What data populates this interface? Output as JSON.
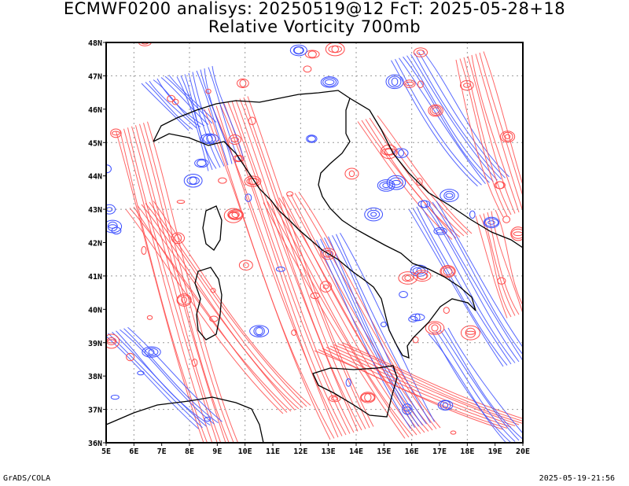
{
  "header": {
    "line1": "ECMWF0200 analisys: 20250519@12 FcT: 2025-05-28+18",
    "line2": "Relative Vorticity 700mb"
  },
  "footer": {
    "credit": "GrADS/COLA",
    "timestamp": "2025-05-19-21:56"
  },
  "map": {
    "lon_range": [
      5,
      20
    ],
    "lat_range": [
      36,
      48
    ],
    "lon_ticks": [
      "5E",
      "6E",
      "7E",
      "8E",
      "9E",
      "10E",
      "11E",
      "12E",
      "13E",
      "14E",
      "15E",
      "16E",
      "17E",
      "18E",
      "19E",
      "20E"
    ],
    "lat_ticks": [
      "36N",
      "37N",
      "38N",
      "39N",
      "40N",
      "41N",
      "42N",
      "43N",
      "44N",
      "45N",
      "46N",
      "47N",
      "48N"
    ],
    "grid": "dotted every 2 degrees",
    "colors": {
      "positive": "#ff4a4a",
      "negative": "#3a4dff",
      "coast": "#000000",
      "grid": "#999999"
    }
  }
}
